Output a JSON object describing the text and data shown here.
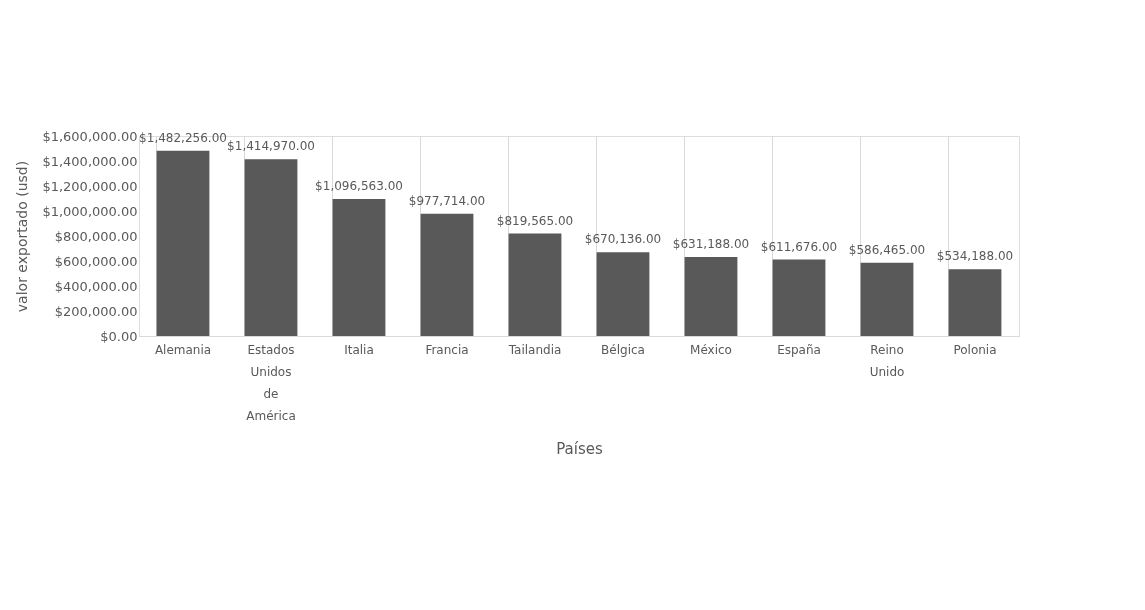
{
  "chart_data": {
    "type": "bar",
    "xlabel": "Países",
    "ylabel": "valor exportado (usd)",
    "categories": [
      "Alemania",
      "Estados Unidos de América",
      "Italia",
      "Francia",
      "Tailandia",
      "Bélgica",
      "México",
      "España",
      "Reino Unido",
      "Polonia"
    ],
    "values": [
      1482256,
      1414970,
      1096563,
      977714,
      819565,
      670136,
      631188,
      611676,
      586465,
      534188
    ],
    "value_labels": [
      "$1,482,256.00",
      "$1,414,970.00",
      "$1,096,563.00",
      "$977,714.00",
      "$819,565.00",
      "$670,136.00",
      "$631,188.00",
      "$611,676.00",
      "$586,465.00",
      "$534,188.00"
    ],
    "color": "#595959",
    "ylim": [
      0,
      1600000
    ],
    "yticks": [
      {
        "value": 0,
        "label": "$0.00"
      },
      {
        "value": 200000,
        "label": "$200,000.00"
      },
      {
        "value": 400000,
        "label": "$400,000.00"
      },
      {
        "value": 600000,
        "label": "$600,000.00"
      },
      {
        "value": 800000,
        "label": "$800,000.00"
      },
      {
        "value": 1000000,
        "label": "$1,000,000.00"
      },
      {
        "value": 1200000,
        "label": "$1,200,000.00"
      },
      {
        "value": 1400000,
        "label": "$1,400,000.00"
      },
      {
        "value": 1600000,
        "label": "$1,600,000.00"
      }
    ],
    "grid": "x"
  }
}
